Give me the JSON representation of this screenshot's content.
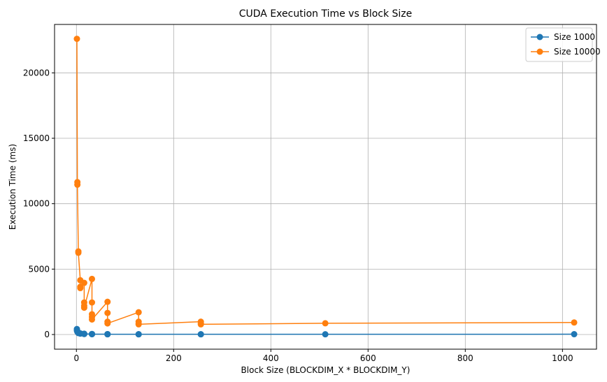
{
  "chart_data": {
    "type": "line",
    "title": "CUDA Execution Time vs Block Size",
    "xlabel": "Block Size (BLOCKDIM_X * BLOCKDIM_Y)",
    "ylabel": "Execution Time (ms)",
    "xlim": [
      -45,
      1070
    ],
    "ylim": [
      -1120,
      23700
    ],
    "xticks": [
      0,
      200,
      400,
      600,
      800,
      1000
    ],
    "yticks": [
      0,
      5000,
      10000,
      15000,
      20000
    ],
    "grid": true,
    "legend_position": "top-right",
    "series": [
      {
        "name": "Size 1000",
        "color": "#1f77b4",
        "marker": "circle",
        "points": [
          [
            1,
            420
          ],
          [
            1,
            300
          ],
          [
            2,
            250
          ],
          [
            2,
            200
          ],
          [
            4,
            150
          ],
          [
            4,
            110
          ],
          [
            8,
            90
          ],
          [
            8,
            70
          ],
          [
            16,
            60
          ],
          [
            16,
            50
          ],
          [
            16,
            45
          ],
          [
            16,
            40
          ],
          [
            32,
            40
          ],
          [
            32,
            35
          ],
          [
            32,
            30
          ],
          [
            32,
            28
          ],
          [
            64,
            28
          ],
          [
            64,
            25
          ],
          [
            64,
            22
          ],
          [
            64,
            20
          ],
          [
            128,
            20
          ],
          [
            128,
            18
          ],
          [
            128,
            18
          ],
          [
            256,
            18
          ],
          [
            256,
            18
          ],
          [
            512,
            20
          ],
          [
            1024,
            25
          ]
        ]
      },
      {
        "name": "Size 10000",
        "color": "#ff7f0e",
        "marker": "circle",
        "points": [
          [
            1,
            22600
          ],
          [
            2,
            11650
          ],
          [
            2,
            11450
          ],
          [
            4,
            6350
          ],
          [
            4,
            6250
          ],
          [
            8,
            4150
          ],
          [
            8,
            3650
          ],
          [
            8,
            3550
          ],
          [
            16,
            3950
          ],
          [
            16,
            2450
          ],
          [
            16,
            2200
          ],
          [
            16,
            2050
          ],
          [
            32,
            4250
          ],
          [
            32,
            2450
          ],
          [
            32,
            1550
          ],
          [
            32,
            1350
          ],
          [
            32,
            1150
          ],
          [
            64,
            2500
          ],
          [
            64,
            1650
          ],
          [
            64,
            980
          ],
          [
            64,
            850
          ],
          [
            128,
            1700
          ],
          [
            128,
            980
          ],
          [
            128,
            820
          ],
          [
            128,
            780
          ],
          [
            256,
            980
          ],
          [
            256,
            850
          ],
          [
            256,
            780
          ],
          [
            512,
            860
          ],
          [
            1024,
            920
          ]
        ]
      }
    ]
  }
}
